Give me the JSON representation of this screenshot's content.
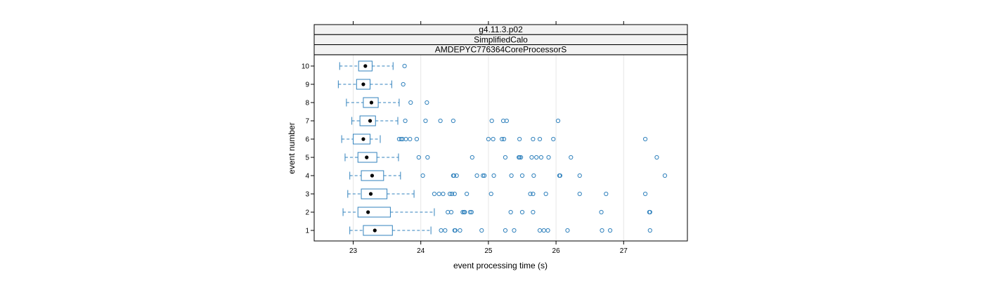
{
  "chart_data": {
    "type": "box",
    "strips": [
      "g4.11.3.p02",
      "SimplifiedCalo",
      "AMDEPYC776364CoreProcessorS"
    ],
    "xlabel": "event processing time (s)",
    "ylabel": "event number",
    "xlim": [
      22.45,
      28.0
    ],
    "xticks": [
      23,
      24,
      25,
      26,
      27
    ],
    "categories": [
      "1",
      "2",
      "3",
      "4",
      "5",
      "6",
      "7",
      "8",
      "9",
      "10"
    ],
    "grid": true,
    "colors": {
      "box": "#3182bd",
      "median": "#000000",
      "grid": "#e6e6e6",
      "strip_bg": "#f2f2f2"
    },
    "boxes": [
      {
        "event": "1",
        "whisker_low": 22.95,
        "q1": 23.15,
        "median": 23.32,
        "q3": 23.58,
        "whisker_high": 24.15,
        "outliers": [
          24.3,
          24.36,
          24.5,
          24.51,
          24.58,
          24.9,
          25.25,
          25.38,
          25.76,
          25.82,
          25.88,
          26.17,
          26.68,
          26.8,
          27.39
        ]
      },
      {
        "event": "2",
        "whisker_low": 22.85,
        "q1": 23.07,
        "median": 23.22,
        "q3": 23.55,
        "whisker_high": 24.2,
        "outliers": [
          24.4,
          24.45,
          24.62,
          24.64,
          24.65,
          24.73,
          24.75,
          25.33,
          25.5,
          25.66,
          26.67,
          27.38,
          27.39
        ]
      },
      {
        "event": "3",
        "whisker_low": 22.92,
        "q1": 23.12,
        "median": 23.26,
        "q3": 23.5,
        "whisker_high": 23.9,
        "outliers": [
          24.2,
          24.27,
          24.33,
          24.43,
          24.46,
          24.5,
          24.68,
          25.04,
          25.62,
          25.66,
          25.85,
          26.35,
          26.74,
          27.32
        ]
      },
      {
        "event": "4",
        "whisker_low": 22.95,
        "q1": 23.12,
        "median": 23.28,
        "q3": 23.45,
        "whisker_high": 23.7,
        "outliers": [
          24.03,
          24.48,
          24.49,
          24.53,
          24.83,
          24.92,
          24.94,
          25.08,
          25.34,
          25.5,
          25.67,
          26.05,
          26.06,
          26.35,
          27.61
        ]
      },
      {
        "event": "5",
        "whisker_low": 22.88,
        "q1": 23.07,
        "median": 23.2,
        "q3": 23.35,
        "whisker_high": 23.67,
        "outliers": [
          23.97,
          24.1,
          24.76,
          25.25,
          25.45,
          25.46,
          25.48,
          25.64,
          25.71,
          25.78,
          25.89,
          26.22,
          27.49
        ]
      },
      {
        "event": "6",
        "whisker_low": 22.83,
        "q1": 23.0,
        "median": 23.15,
        "q3": 23.25,
        "whisker_high": 23.4,
        "outliers": [
          23.68,
          23.71,
          23.73,
          23.78,
          23.84,
          23.94,
          25.0,
          25.07,
          25.2,
          25.23,
          25.46,
          25.66,
          25.76,
          25.96,
          27.32
        ]
      },
      {
        "event": "7",
        "whisker_low": 22.98,
        "q1": 23.1,
        "median": 23.25,
        "q3": 23.33,
        "whisker_high": 23.66,
        "outliers": [
          23.77,
          24.07,
          24.29,
          24.48,
          25.05,
          25.22,
          25.27,
          26.03
        ]
      },
      {
        "event": "8",
        "whisker_low": 22.9,
        "q1": 23.15,
        "median": 23.27,
        "q3": 23.37,
        "whisker_high": 23.68,
        "outliers": [
          23.85,
          24.09
        ]
      },
      {
        "event": "9",
        "whisker_low": 22.78,
        "q1": 23.05,
        "median": 23.15,
        "q3": 23.25,
        "whisker_high": 23.57,
        "outliers": [
          23.74
        ]
      },
      {
        "event": "10",
        "whisker_low": 22.8,
        "q1": 23.08,
        "median": 23.18,
        "q3": 23.28,
        "whisker_high": 23.59,
        "outliers": [
          23.76
        ]
      }
    ]
  }
}
